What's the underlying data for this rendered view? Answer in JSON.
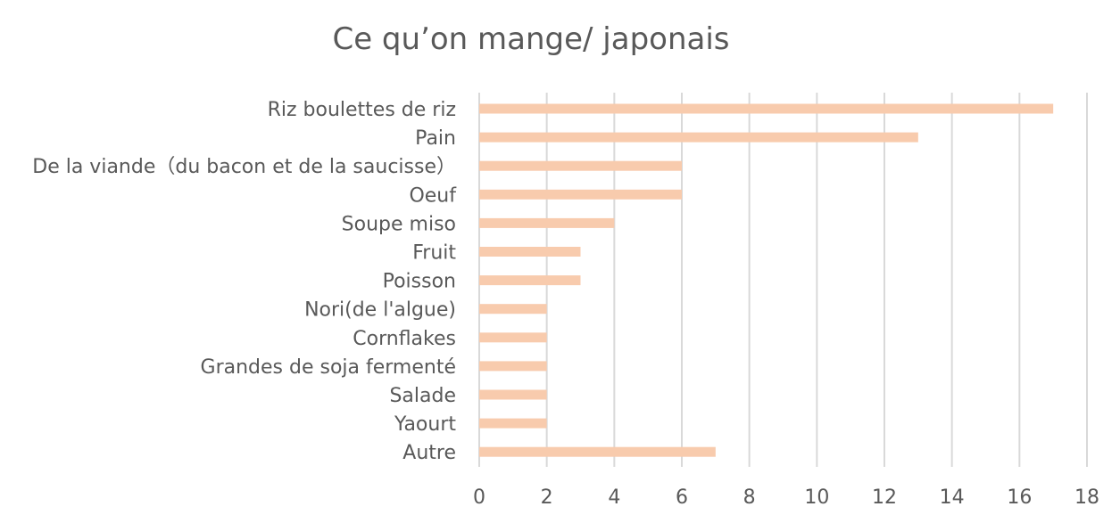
{
  "chart_data": {
    "type": "bar",
    "orientation": "horizontal",
    "title": "Ce qu’on mange/ japonais",
    "xlabel": "",
    "ylabel": "",
    "categories": [
      "Riz boulettes de riz",
      "Pain",
      "De la viande（du bacon et de la saucisse）",
      "Oeuf",
      "Soupe miso",
      "Fruit",
      "Poisson",
      "Nori(de l'algue)",
      "Cornflakes",
      "Grandes de soja fermenté",
      "Salade",
      "Yaourt",
      "Autre"
    ],
    "values": [
      17,
      13,
      6,
      6,
      4,
      3,
      3,
      2,
      2,
      2,
      2,
      2,
      7
    ],
    "xlim": [
      0,
      18
    ],
    "x_ticks": [
      0,
      2,
      4,
      6,
      8,
      10,
      12,
      14,
      16,
      18
    ],
    "grid": "vertical",
    "legend": "none",
    "bar_color": "#F8CBAD",
    "grid_color": "#D9D9D9",
    "text_color": "#595959"
  }
}
